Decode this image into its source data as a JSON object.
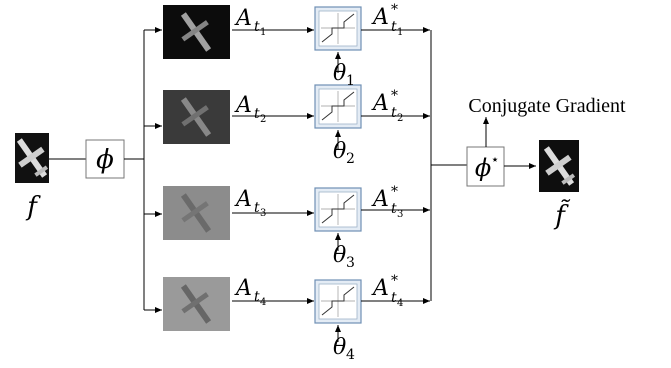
{
  "input": {
    "label": "f"
  },
  "output": {
    "label": "f̃"
  },
  "transform": {
    "label": "ϕ"
  },
  "adjoint": {
    "label": "ϕ",
    "superscript": "⋆"
  },
  "solver": {
    "label": "Conjugate Gradient"
  },
  "branches": [
    {
      "image_tone": "dark",
      "input_label": "A",
      "input_sub": "t",
      "input_subsub": "1",
      "output_label": "A",
      "output_sup": "*",
      "output_sub": "t",
      "output_subsub": "1",
      "param_label": "θ",
      "param_sub": "1"
    },
    {
      "image_tone": "medium",
      "input_label": "A",
      "input_sub": "t",
      "input_subsub": "2",
      "output_label": "A",
      "output_sup": "*",
      "output_sub": "t",
      "output_subsub": "2",
      "param_label": "θ",
      "param_sub": "2"
    },
    {
      "image_tone": "light",
      "input_label": "A",
      "input_sub": "t",
      "input_subsub": "3",
      "output_label": "A",
      "output_sup": "*",
      "output_sub": "t",
      "output_subsub": "3",
      "param_label": "θ",
      "param_sub": "3"
    },
    {
      "image_tone": "lighter",
      "input_label": "A",
      "input_sub": "t",
      "input_subsub": "4",
      "output_label": "A",
      "output_sup": "*",
      "output_sub": "t",
      "output_subsub": "4",
      "param_label": "θ",
      "param_sub": "4"
    }
  ]
}
